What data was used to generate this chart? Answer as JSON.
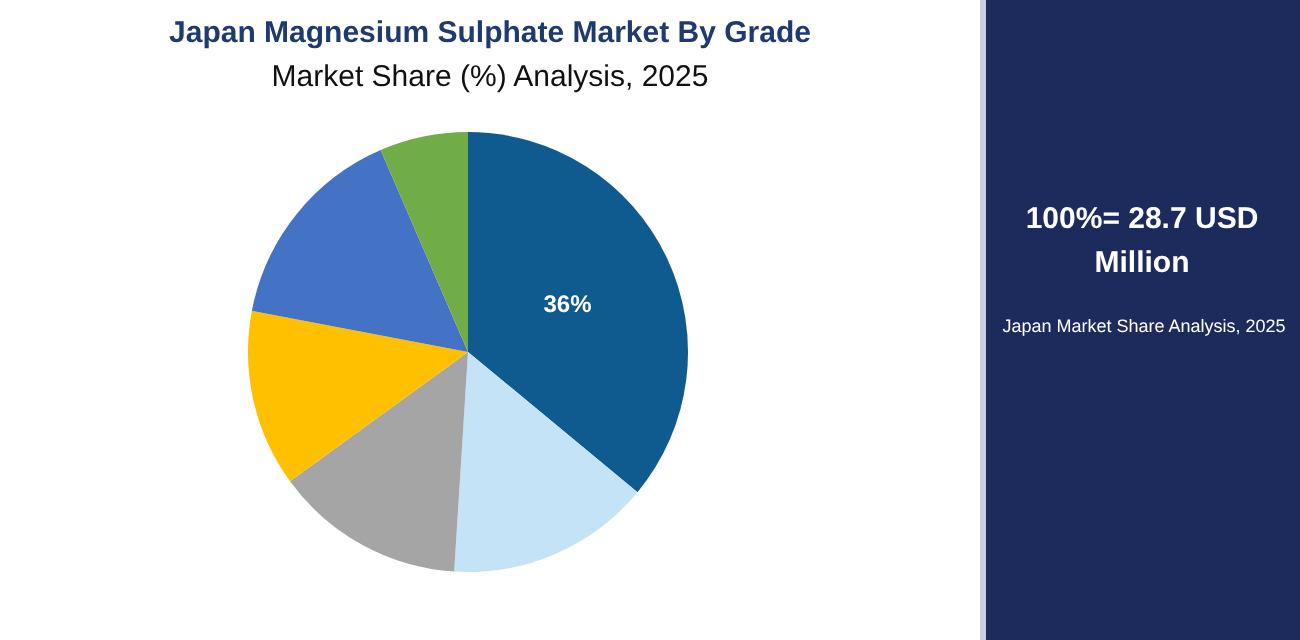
{
  "chart_data": {
    "type": "pie",
    "title": "Japan Magnesium Sulphate Market By Grade",
    "subtitle": "Market Share (%) Analysis, 2025",
    "categories": [
      null,
      null,
      null,
      null,
      null,
      null
    ],
    "values": [
      36,
      15,
      14,
      13,
      15.5,
      6.5
    ],
    "colors": [
      "#0f5a8e",
      "#c5e3f6",
      "#a5a5a5",
      "#ffc000",
      "#4472c4",
      "#70ad47"
    ],
    "value_labels": [
      "36%",
      null,
      null,
      null,
      null,
      null
    ],
    "legend": false,
    "annotations": [
      "100%= 28.7 USD Million",
      "Japan Market Share Analysis, 2025"
    ]
  }
}
